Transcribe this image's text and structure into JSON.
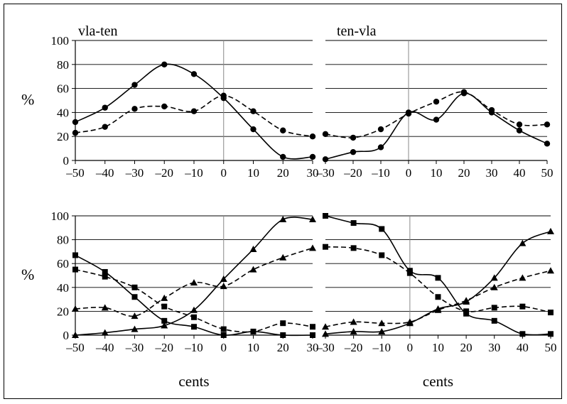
{
  "chart_data": [
    {
      "type": "line",
      "title": "vla-ten",
      "ylabel": "%",
      "xlabel": "",
      "x": [
        -50,
        -40,
        -30,
        -20,
        -10,
        0,
        10,
        20,
        30
      ],
      "x_tick_labels": [
        "–50",
        "–40",
        "–30",
        "–20",
        "–10",
        "0",
        "10",
        "20",
        "30"
      ],
      "y_tick_labels": [
        "0",
        "20",
        "40",
        "60",
        "80",
        "100"
      ],
      "xlim": [
        -50,
        30
      ],
      "ylim": [
        0,
        100
      ],
      "grid": "horizontal",
      "series": [
        {
          "marker": "circle",
          "line": "solid",
          "values": [
            32,
            44,
            63,
            80,
            72,
            52,
            26,
            3,
            3
          ]
        },
        {
          "marker": "circle",
          "line": "dashed",
          "values": [
            23,
            28,
            43,
            45,
            41,
            54,
            41,
            25,
            20
          ]
        }
      ]
    },
    {
      "type": "line",
      "title": "ten-vla",
      "ylabel": "",
      "xlabel": "",
      "x": [
        -30,
        -20,
        -10,
        0,
        10,
        20,
        30,
        40,
        50
      ],
      "x_tick_labels": [
        "–30",
        "–20",
        "–10",
        "0",
        "10",
        "20",
        "30",
        "40",
        "50"
      ],
      "xlim": [
        -30,
        50
      ],
      "ylim": [
        0,
        100
      ],
      "grid": "horizontal",
      "series": [
        {
          "marker": "circle",
          "line": "solid",
          "values": [
            1,
            7,
            11,
            40,
            34,
            56,
            40,
            25,
            14
          ]
        },
        {
          "marker": "circle",
          "line": "dashed",
          "values": [
            22,
            19,
            26,
            39,
            49,
            57,
            42,
            30,
            30
          ]
        }
      ]
    },
    {
      "type": "line",
      "title": "",
      "ylabel": "%",
      "xlabel": "cents",
      "x": [
        -50,
        -40,
        -30,
        -20,
        -10,
        0,
        10,
        20,
        30
      ],
      "x_tick_labels": [
        "–50",
        "–40",
        "–30",
        "–20",
        "–10",
        "0",
        "10",
        "20",
        "30"
      ],
      "y_tick_labels": [
        "0",
        "20",
        "40",
        "60",
        "80",
        "100"
      ],
      "xlim": [
        -50,
        30
      ],
      "ylim": [
        0,
        100
      ],
      "grid": "horizontal",
      "series": [
        {
          "marker": "square",
          "line": "solid",
          "values": [
            67,
            53,
            32,
            12,
            7,
            0,
            3,
            0,
            0
          ]
        },
        {
          "marker": "square",
          "line": "dashed",
          "values": [
            55,
            49,
            40,
            24,
            15,
            5,
            3,
            10,
            7
          ]
        },
        {
          "marker": "triangle",
          "line": "solid",
          "values": [
            0,
            2,
            5,
            8,
            21,
            47,
            72,
            97,
            97
          ]
        },
        {
          "marker": "triangle",
          "line": "dashed",
          "values": [
            22,
            23,
            16,
            31,
            44,
            41,
            55,
            65,
            73
          ]
        }
      ]
    },
    {
      "type": "line",
      "title": "",
      "ylabel": "",
      "xlabel": "cents",
      "x": [
        -30,
        -20,
        -10,
        0,
        10,
        20,
        30,
        40,
        50
      ],
      "x_tick_labels": [
        "–30",
        "–20",
        "–10",
        "0",
        "10",
        "20",
        "30",
        "40",
        "50"
      ],
      "xlim": [
        -30,
        50
      ],
      "ylim": [
        0,
        100
      ],
      "grid": "horizontal",
      "series": [
        {
          "marker": "square",
          "line": "solid",
          "values": [
            100,
            94,
            89,
            54,
            48,
            18,
            12,
            1,
            1
          ]
        },
        {
          "marker": "square",
          "line": "dashed",
          "values": [
            74,
            73,
            67,
            52,
            32,
            20,
            23,
            24,
            19
          ]
        },
        {
          "marker": "triangle",
          "line": "solid",
          "values": [
            1,
            3,
            3,
            10,
            22,
            28,
            48,
            77,
            87
          ]
        },
        {
          "marker": "triangle",
          "line": "dashed",
          "values": [
            7,
            11,
            10,
            11,
            21,
            29,
            40,
            48,
            54
          ]
        }
      ]
    }
  ]
}
